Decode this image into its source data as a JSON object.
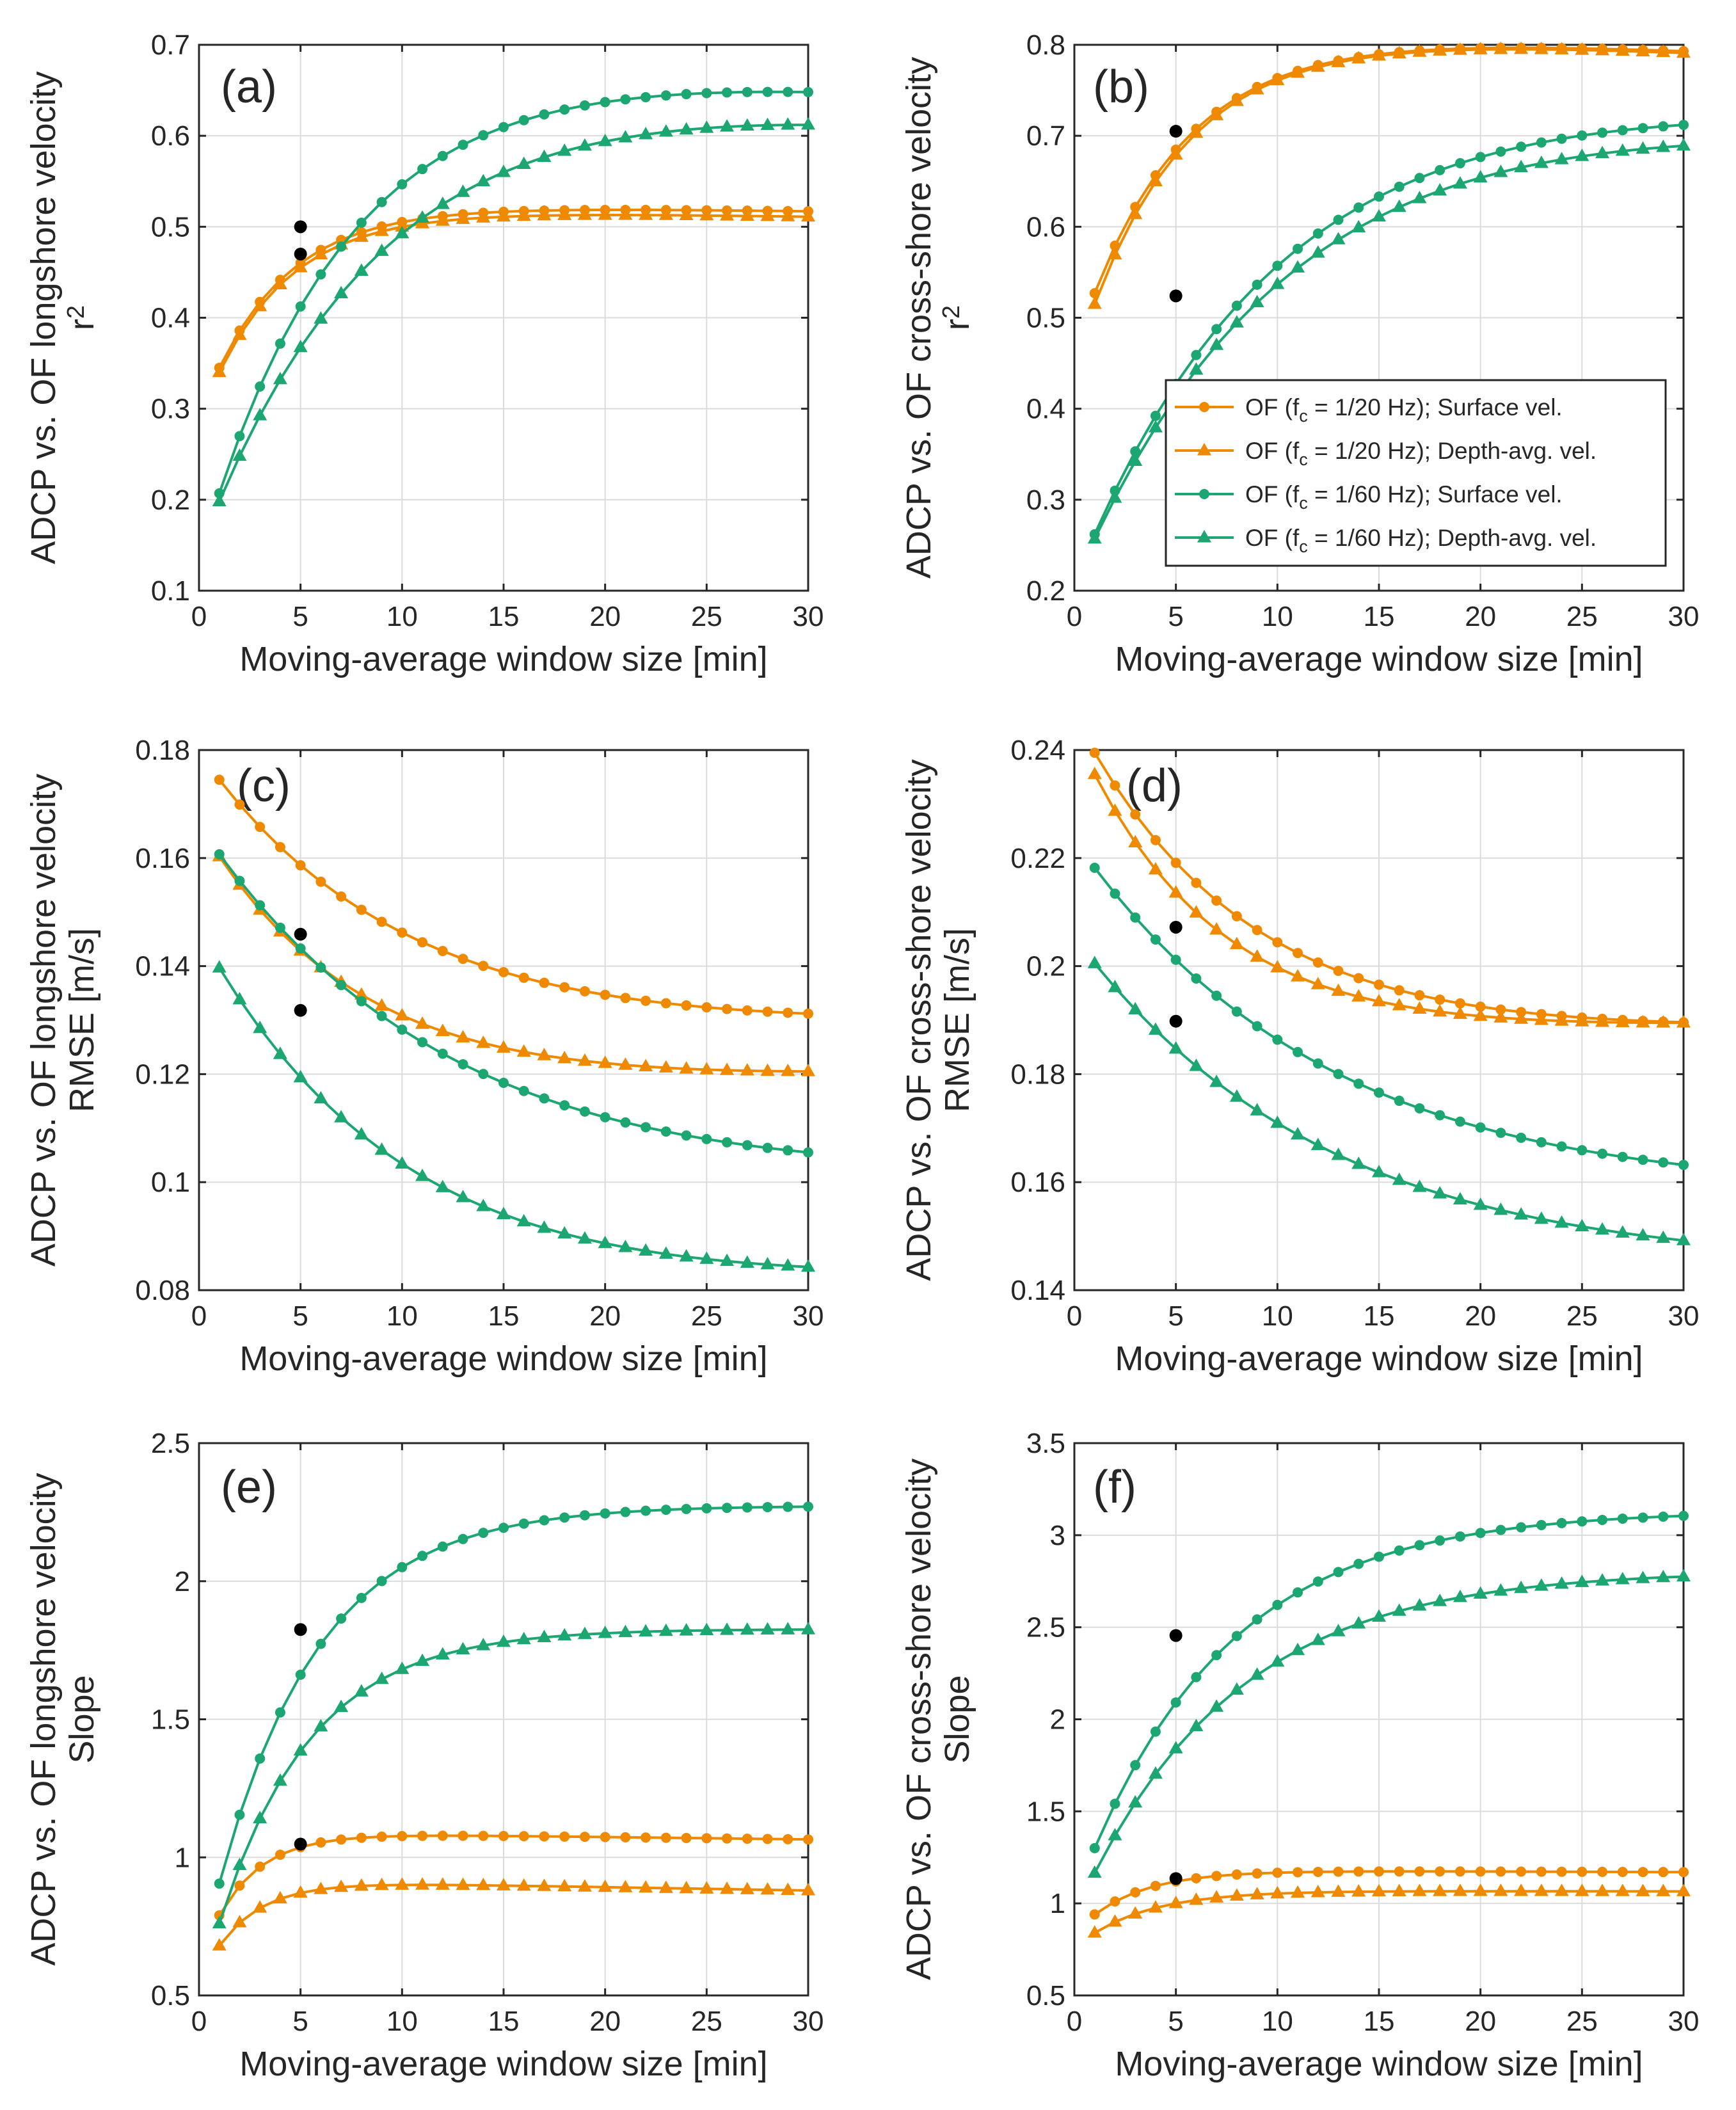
{
  "figure": {
    "colors": {
      "orange": "#EE8900",
      "green": "#1BA672",
      "black": "#000000",
      "axis": "#262626",
      "grid": "#DBDBDB"
    },
    "legend": [
      {
        "parts": [
          "OF (f",
          "c",
          " = 1/20 Hz); Surface vel."
        ],
        "color": "#EE8900",
        "marker": "circle"
      },
      {
        "parts": [
          "OF (f",
          "c",
          " = 1/20 Hz); Depth-avg. vel."
        ],
        "color": "#EE8900",
        "marker": "triangle"
      },
      {
        "parts": [
          "OF (f",
          "c",
          " = 1/60 Hz); Surface vel."
        ],
        "color": "#1BA672",
        "marker": "circle"
      },
      {
        "parts": [
          "OF (f",
          "c",
          " = 1/60 Hz); Depth-avg. vel."
        ],
        "color": "#1BA672",
        "marker": "triangle"
      }
    ]
  },
  "chart_data": [
    {
      "id": "a",
      "type": "line",
      "panel_label": "(a)",
      "xlabel": "Moving-average window size [min]",
      "ylabel_lines": [
        "ADCP vs. OF longshore velocity",
        "r",
        "2"
      ],
      "xlim": [
        0,
        30
      ],
      "ylim": [
        0.1,
        0.7
      ],
      "xticks": [
        0,
        5,
        10,
        15,
        20,
        25,
        30
      ],
      "xtick_labels": [
        "0",
        "5",
        "10",
        "15",
        "20",
        "25",
        "30"
      ],
      "yticks": [
        0.1,
        0.2,
        0.3,
        0.4,
        0.5,
        0.6,
        0.7
      ],
      "ytick_labels": [
        "0.1",
        "0.2",
        "0.3",
        "0.4",
        "0.5",
        "0.6",
        "0.7"
      ],
      "series": [
        {
          "name": "OF (fc = 1/20 Hz); Surface vel.",
          "color": "#EE8900",
          "marker": "circle",
          "anchor": [
            1,
            0.345
          ],
          "end": [
            30,
            0.517
          ],
          "plateau": 0.525,
          "k": 0.26,
          "decline": 0
        },
        {
          "name": "OF (fc = 1/20 Hz); Depth-avg. vel.",
          "color": "#EE8900",
          "marker": "triangle",
          "anchor": [
            1,
            0.34
          ],
          "end": [
            30,
            0.511
          ],
          "plateau": 0.52,
          "k": 0.26,
          "decline": 0
        },
        {
          "name": "OF (fc = 1/60 Hz); Surface vel.",
          "color": "#1BA672",
          "marker": "circle",
          "anchor": [
            1,
            0.207
          ],
          "end": [
            30,
            0.648
          ],
          "plateau": 0.7,
          "k": 0.14,
          "decline": 0
        },
        {
          "name": "OF (fc = 1/60 Hz); Depth-avg. vel.",
          "color": "#1BA672",
          "marker": "triangle",
          "anchor": [
            1,
            0.198
          ],
          "end": [
            30,
            0.612
          ],
          "plateau": 0.7,
          "k": 0.11,
          "decline": 0
        }
      ],
      "highlights": [
        [
          5,
          0.5
        ],
        [
          5,
          0.47
        ]
      ]
    },
    {
      "id": "b",
      "type": "line",
      "panel_label": "(b)",
      "xlabel": "Moving-average window size [min]",
      "ylabel_lines": [
        "ADCP vs. OF cross-shore velocity",
        "r",
        "2"
      ],
      "xlim": [
        0,
        30
      ],
      "ylim": [
        0.2,
        0.8
      ],
      "xticks": [
        0,
        5,
        10,
        15,
        20,
        25,
        30
      ],
      "xtick_labels": [
        "0",
        "5",
        "10",
        "15",
        "20",
        "25",
        "30"
      ],
      "yticks": [
        0.2,
        0.3,
        0.4,
        0.5,
        0.6,
        0.7,
        0.8
      ],
      "ytick_labels": [
        "0.2",
        "0.3",
        "0.4",
        "0.5",
        "0.6",
        "0.7",
        "0.8"
      ],
      "series": [
        {
          "name": "OF (fc = 1/20 Hz); Surface vel.",
          "color": "#EE8900",
          "marker": "circle",
          "anchor": [
            1,
            0.527
          ],
          "end": [
            30,
            0.793
          ],
          "plateau": 0.82,
          "k": 0.2,
          "decline": 0
        },
        {
          "name": "OF (fc = 1/20 Hz); Depth-avg. vel.",
          "color": "#EE8900",
          "marker": "triangle",
          "anchor": [
            1,
            0.515
          ],
          "end": [
            30,
            0.791
          ],
          "plateau": 0.82,
          "k": 0.2,
          "decline": 0
        },
        {
          "name": "OF (fc = 1/60 Hz); Surface vel.",
          "color": "#1BA672",
          "marker": "circle",
          "anchor": [
            1,
            0.262
          ],
          "end": [
            30,
            0.712
          ],
          "plateau": 0.78,
          "k": 0.1,
          "decline": 0
        },
        {
          "name": "OF (fc = 1/60 Hz); Depth-avg. vel.",
          "color": "#1BA672",
          "marker": "triangle",
          "anchor": [
            1,
            0.257
          ],
          "end": [
            30,
            0.689
          ],
          "plateau": 0.77,
          "k": 0.095,
          "decline": 0
        }
      ],
      "highlights": [
        [
          5,
          0.705
        ],
        [
          5,
          0.524
        ]
      ]
    },
    {
      "id": "c",
      "type": "line",
      "panel_label": "(c)",
      "xlabel": "Moving-average window size [min]",
      "ylabel_lines": [
        "ADCP vs. OF longshore velocity",
        "RMSE [m/s]"
      ],
      "xlim": [
        0,
        30
      ],
      "ylim": [
        0.08,
        0.18
      ],
      "xticks": [
        0,
        5,
        10,
        15,
        20,
        25,
        30
      ],
      "xtick_labels": [
        "0",
        "5",
        "10",
        "15",
        "20",
        "25",
        "30"
      ],
      "yticks": [
        0.08,
        0.1,
        0.12,
        0.14,
        0.16,
        0.18
      ],
      "ytick_labels": [
        "0.08",
        "0.1",
        "0.12",
        "0.14",
        "0.16",
        "0.18"
      ],
      "series": [
        {
          "name": "OF (fc = 1/20 Hz); Surface vel.",
          "color": "#EE8900",
          "marker": "circle",
          "anchor": [
            1,
            0.1745
          ],
          "end": [
            30,
            0.1312
          ],
          "plateau": 0.125,
          "k": 0.1,
          "decline": 0
        },
        {
          "name": "OF (fc = 1/20 Hz); Depth-avg. vel.",
          "color": "#EE8900",
          "marker": "triangle",
          "anchor": [
            1,
            0.1603
          ],
          "end": [
            30,
            0.1205
          ],
          "plateau": 0.116,
          "k": 0.13,
          "decline": 0
        },
        {
          "name": "OF (fc = 1/60 Hz); Surface vel.",
          "color": "#1BA672",
          "marker": "circle",
          "anchor": [
            1,
            0.1607
          ],
          "end": [
            30,
            0.1055
          ],
          "plateau": 0.095,
          "k": 0.08,
          "decline": 0
        },
        {
          "name": "OF (fc = 1/60 Hz); Depth-avg. vel.",
          "color": "#1BA672",
          "marker": "triangle",
          "anchor": [
            1,
            0.1397
          ],
          "end": [
            30,
            0.0843
          ],
          "plateau": 0.076,
          "k": 0.1,
          "decline": 0
        }
      ],
      "highlights": [
        [
          5,
          0.1459
        ],
        [
          5,
          0.1318
        ]
      ]
    },
    {
      "id": "d",
      "type": "line",
      "panel_label": "(d)",
      "xlabel": "Moving-average window size [min]",
      "ylabel_lines": [
        "ADCP vs. OF cross-shore velocity",
        "RMSE [m/s]"
      ],
      "xlim": [
        0,
        30
      ],
      "ylim": [
        0.14,
        0.24
      ],
      "xticks": [
        0,
        5,
        10,
        15,
        20,
        25,
        30
      ],
      "xtick_labels": [
        "0",
        "5",
        "10",
        "15",
        "20",
        "25",
        "30"
      ],
      "yticks": [
        0.14,
        0.16,
        0.18,
        0.2,
        0.22,
        0.24
      ],
      "ytick_labels": [
        "0.14",
        "0.16",
        "0.18",
        "0.2",
        "0.22",
        "0.24"
      ],
      "series": [
        {
          "name": "OF (fc = 1/20 Hz); Surface vel.",
          "color": "#EE8900",
          "marker": "circle",
          "anchor": [
            1,
            0.2395
          ],
          "end": [
            30,
            0.1896
          ],
          "plateau": 0.185,
          "k": 0.12,
          "decline": 0
        },
        {
          "name": "OF (fc = 1/20 Hz); Depth-avg. vel.",
          "color": "#EE8900",
          "marker": "triangle",
          "anchor": [
            1,
            0.2355
          ],
          "end": [
            30,
            0.1895
          ],
          "plateau": 0.186,
          "k": 0.15,
          "decline": 0
        },
        {
          "name": "OF (fc = 1/60 Hz); Surface vel.",
          "color": "#1BA672",
          "marker": "circle",
          "anchor": [
            1,
            0.2182
          ],
          "end": [
            30,
            0.1632
          ],
          "plateau": 0.155,
          "k": 0.08,
          "decline": 0
        },
        {
          "name": "OF (fc = 1/60 Hz); Depth-avg. vel.",
          "color": "#1BA672",
          "marker": "triangle",
          "anchor": [
            1,
            0.2005
          ],
          "end": [
            30,
            0.1492
          ],
          "plateau": 0.142,
          "k": 0.08,
          "decline": 0
        }
      ],
      "highlights": [
        [
          5,
          0.2072
        ],
        [
          5,
          0.1898
        ]
      ]
    },
    {
      "id": "e",
      "type": "line",
      "panel_label": "(e)",
      "xlabel": "Moving-average window size [min]",
      "ylabel_lines": [
        "ADCP vs. OF longshore velocity",
        "Slope"
      ],
      "xlim": [
        0,
        30
      ],
      "ylim": [
        0.5,
        2.5
      ],
      "xticks": [
        0,
        5,
        10,
        15,
        20,
        25,
        30
      ],
      "xtick_labels": [
        "0",
        "5",
        "10",
        "15",
        "20",
        "25",
        "30"
      ],
      "yticks": [
        0.5,
        1,
        1.5,
        2,
        2.5
      ],
      "ytick_labels": [
        "0.5",
        "1",
        "1.5",
        "2",
        "2.5"
      ],
      "series": [
        {
          "name": "OF (fc = 1/20 Hz); Surface vel.",
          "color": "#EE8900",
          "marker": "circle",
          "anchor": [
            1,
            0.79
          ],
          "end": [
            30,
            1.065
          ],
          "plateau": 1.09,
          "k": 0.45,
          "decline": 0.0012
        },
        {
          "name": "OF (fc = 1/20 Hz); Depth-avg. vel.",
          "color": "#EE8900",
          "marker": "triangle",
          "anchor": [
            1,
            0.68
          ],
          "end": [
            30,
            0.88
          ],
          "plateau": 0.915,
          "k": 0.45,
          "decline": 0.0012
        },
        {
          "name": "OF (fc = 1/60 Hz); Surface vel.",
          "color": "#1BA672",
          "marker": "circle",
          "anchor": [
            1,
            0.905
          ],
          "end": [
            30,
            2.27
          ],
          "plateau": 2.28,
          "k": 0.2,
          "decline": 0
        },
        {
          "name": "OF (fc = 1/60 Hz); Depth-avg. vel.",
          "color": "#1BA672",
          "marker": "triangle",
          "anchor": [
            1,
            0.76
          ],
          "end": [
            30,
            1.825
          ],
          "plateau": 1.83,
          "k": 0.22,
          "decline": 0
        }
      ],
      "highlights": [
        [
          5,
          1.825
        ],
        [
          5,
          1.048
        ]
      ]
    },
    {
      "id": "f",
      "type": "line",
      "panel_label": "(f)",
      "xlabel": "Moving-average window size [min]",
      "ylabel_lines": [
        "ADCP vs. OF cross-shore velocity",
        "Slope"
      ],
      "xlim": [
        0,
        30
      ],
      "ylim": [
        0.5,
        3.5
      ],
      "xticks": [
        0,
        5,
        10,
        15,
        20,
        25,
        30
      ],
      "xtick_labels": [
        "0",
        "5",
        "10",
        "15",
        "20",
        "25",
        "30"
      ],
      "yticks": [
        0.5,
        1,
        1.5,
        2,
        2.5,
        3,
        3.5
      ],
      "ytick_labels": [
        "0.5",
        "1",
        "1.5",
        "2",
        "2.5",
        "3",
        "3.5"
      ],
      "series": [
        {
          "name": "OF (fc = 1/20 Hz); Surface vel.",
          "color": "#EE8900",
          "marker": "circle",
          "anchor": [
            1,
            0.94
          ],
          "end": [
            30,
            1.17
          ],
          "plateau": 1.18,
          "k": 0.35,
          "decline": 0
        },
        {
          "name": "OF (fc = 1/20 Hz); Depth-avg. vel.",
          "color": "#EE8900",
          "marker": "triangle",
          "anchor": [
            1,
            0.84
          ],
          "end": [
            30,
            1.065
          ],
          "plateau": 1.07,
          "k": 0.3,
          "decline": 0
        },
        {
          "name": "OF (fc = 1/60 Hz); Surface vel.",
          "color": "#1BA672",
          "marker": "circle",
          "anchor": [
            1,
            1.3
          ],
          "end": [
            30,
            3.105
          ],
          "plateau": 3.15,
          "k": 0.14,
          "decline": 0
        },
        {
          "name": "OF (fc = 1/60 Hz); Depth-avg. vel.",
          "color": "#1BA672",
          "marker": "triangle",
          "anchor": [
            1,
            1.165
          ],
          "end": [
            30,
            2.775
          ],
          "plateau": 2.84,
          "k": 0.13,
          "decline": 0
        }
      ],
      "highlights": [
        [
          5,
          2.455
        ],
        [
          5,
          1.135
        ]
      ]
    }
  ]
}
